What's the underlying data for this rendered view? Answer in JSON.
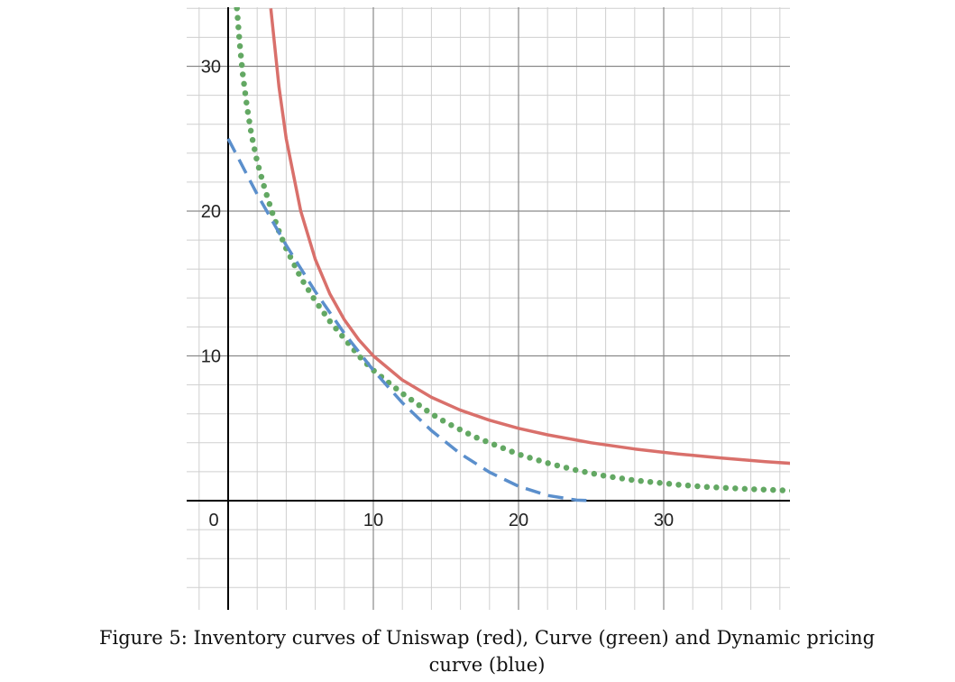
{
  "caption": "Figure 5: Inventory curves of Uniswap (red), Curve (green) and Dynamic pricing curve (blue)",
  "chart_data": {
    "type": "line",
    "title": "",
    "xlabel": "",
    "ylabel": "",
    "xlim": [
      -3,
      39
    ],
    "ylim": [
      -7.5,
      34
    ],
    "grid": true,
    "major_ticks_x": [
      0,
      10,
      20,
      30
    ],
    "major_ticks_y": [
      10,
      20,
      30
    ],
    "origin_label": "0",
    "series": [
      {
        "key": "uniswap",
        "color": "#d9706b",
        "style": "solid",
        "x": [
          2.94,
          3.5,
          4,
          5,
          6,
          7,
          8,
          9,
          10,
          12,
          14,
          16,
          18,
          20,
          22,
          25,
          28,
          31,
          34,
          37,
          39
        ],
        "y": [
          34,
          28.57,
          25,
          20,
          16.67,
          14.29,
          12.5,
          11.11,
          10,
          8.33,
          7.14,
          6.25,
          5.56,
          5,
          4.55,
          4,
          3.57,
          3.23,
          2.94,
          2.7,
          2.56
        ]
      },
      {
        "key": "curve",
        "color": "#63a863",
        "style": "dotted",
        "x": [
          0.6,
          0.8,
          1.0,
          1.3,
          1.6,
          2.0,
          2.5,
          3.0,
          3.5,
          4,
          5,
          6,
          7,
          8,
          9,
          10,
          11,
          12,
          13,
          14,
          15,
          16,
          17,
          18,
          19,
          20,
          21,
          22,
          23,
          24,
          25,
          26,
          27,
          28,
          29,
          30,
          31,
          32,
          33,
          34,
          35,
          36,
          37,
          38,
          39
        ],
        "y": [
          34,
          31.5,
          29.5,
          27.2,
          25.3,
          23.4,
          21.6,
          20.0,
          18.6,
          17.4,
          15.4,
          13.8,
          12.4,
          11.2,
          10.0,
          9.0,
          8.2,
          7.4,
          6.7,
          6.0,
          5.4,
          4.9,
          4.4,
          4.0,
          3.6,
          3.2,
          2.9,
          2.6,
          2.35,
          2.1,
          1.9,
          1.7,
          1.55,
          1.4,
          1.3,
          1.2,
          1.1,
          1.02,
          0.95,
          0.9,
          0.85,
          0.8,
          0.76,
          0.72,
          0.68
        ]
      },
      {
        "key": "dynamic",
        "color": "#5b8fcc",
        "style": "dashed",
        "x": [
          0,
          2,
          4,
          6,
          8,
          10,
          12,
          14,
          16,
          18,
          20,
          22,
          24,
          25
        ],
        "y": [
          25,
          21.16,
          17.64,
          14.44,
          11.56,
          9.0,
          6.76,
          4.84,
          3.24,
          1.96,
          1.0,
          0.36,
          0.04,
          0
        ]
      }
    ]
  },
  "colors": {
    "grid_minor": "#cfcfcf",
    "grid_major": "#8a8a8a",
    "axis": "#000000"
  }
}
